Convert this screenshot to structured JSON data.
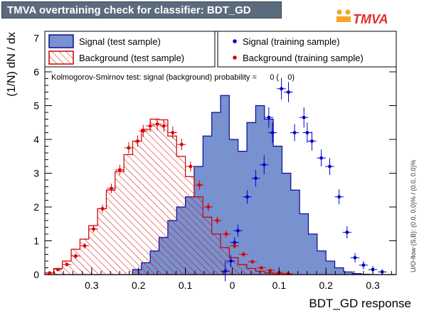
{
  "header": {
    "title": "TMVA overtraining check for classifier: BDT_GD",
    "logo_text": "TMVA"
  },
  "colors": {
    "title_bg": "#5b6b7e",
    "signal_fill": "#7891cf",
    "signal_line": "#0a0a9a",
    "signal_points": "#0000cc",
    "background_line": "#cc0000",
    "background_points": "#dd0000",
    "logo_orange": "#f5a623",
    "logo_red": "#e0302a"
  },
  "chart_data": {
    "type": "histogram",
    "xlabel": "BDT_GD response",
    "ylabel": "(1/N) dN / dx",
    "xlim": [
      -0.4,
      0.35
    ],
    "ylim": [
      0,
      7.2
    ],
    "x_ticks": [
      -0.3,
      -0.2,
      -0.1,
      0,
      0.1,
      0.2,
      0.3
    ],
    "x_tick_labels": [
      "0.3",
      "0.2",
      "0.1",
      "0",
      "0.1",
      "0.2",
      "0.3"
    ],
    "y_ticks": [
      0,
      1,
      2,
      3,
      4,
      5,
      6,
      7
    ],
    "bin_edges_start": -0.4,
    "bin_width": 0.01875,
    "signal_test": [
      0,
      0,
      0,
      0,
      0,
      0,
      0,
      0,
      0,
      0,
      0.15,
      0.35,
      0.7,
      1.1,
      1.6,
      2.0,
      2.3,
      3.2,
      4.1,
      4.8,
      5.3,
      4.0,
      3.65,
      4.5,
      5.0,
      4.6,
      3.8,
      3.0,
      2.5,
      1.8,
      1.2,
      0.7,
      0.4,
      0.2,
      0.08,
      0.03,
      0.01,
      0,
      0,
      0
    ],
    "background_test": [
      0.05,
      0.18,
      0.4,
      0.75,
      1.05,
      1.45,
      1.95,
      2.5,
      3.05,
      3.55,
      3.95,
      4.3,
      4.6,
      4.58,
      4.1,
      3.5,
      2.9,
      2.3,
      1.7,
      1.2,
      0.8,
      0.5,
      0.3,
      0.18,
      0.1,
      0.05,
      0.02,
      0.01,
      0,
      0,
      0,
      0,
      0,
      0,
      0,
      0,
      0,
      0,
      0,
      0
    ],
    "signal_train": [
      {
        "x": -0.015,
        "y": 0.1,
        "err": 0.3
      },
      {
        "x": -0.003,
        "y": 0.4,
        "err": 0.18
      },
      {
        "x": 0.005,
        "y": 0.95,
        "err": 0.15
      },
      {
        "x": 0.012,
        "y": 1.3,
        "err": 0.18
      },
      {
        "x": 0.032,
        "y": 2.3,
        "err": 0.2
      },
      {
        "x": 0.05,
        "y": 2.85,
        "err": 0.25
      },
      {
        "x": 0.068,
        "y": 3.25,
        "err": 0.28
      },
      {
        "x": 0.078,
        "y": 4.65,
        "err": 0.3
      },
      {
        "x": 0.086,
        "y": 4.2,
        "err": 0.3
      },
      {
        "x": 0.105,
        "y": 5.5,
        "err": 0.32
      },
      {
        "x": 0.12,
        "y": 5.4,
        "err": 0.3
      },
      {
        "x": 0.133,
        "y": 4.2,
        "err": 0.25
      },
      {
        "x": 0.153,
        "y": 4.65,
        "err": 0.3
      },
      {
        "x": 0.16,
        "y": 4.2,
        "err": 0.3
      },
      {
        "x": 0.17,
        "y": 3.95,
        "err": 0.28
      },
      {
        "x": 0.19,
        "y": 3.45,
        "err": 0.25
      },
      {
        "x": 0.208,
        "y": 3.2,
        "err": 0.25
      },
      {
        "x": 0.228,
        "y": 2.3,
        "err": 0.22
      },
      {
        "x": 0.245,
        "y": 1.25,
        "err": 0.18
      },
      {
        "x": 0.262,
        "y": 0.5,
        "err": 0.14
      },
      {
        "x": 0.28,
        "y": 0.28,
        "err": 0.12
      },
      {
        "x": 0.3,
        "y": 0.15,
        "err": 0.1
      },
      {
        "x": 0.32,
        "y": 0.08,
        "err": 0.08
      }
    ],
    "background_train": [
      {
        "x": -0.39,
        "y": 0.05,
        "err": 0.04
      },
      {
        "x": -0.372,
        "y": 0.15,
        "err": 0.05
      },
      {
        "x": -0.353,
        "y": 0.3,
        "err": 0.06
      },
      {
        "x": -0.334,
        "y": 0.55,
        "err": 0.07
      },
      {
        "x": -0.315,
        "y": 0.85,
        "err": 0.08
      },
      {
        "x": -0.296,
        "y": 1.35,
        "err": 0.1
      },
      {
        "x": -0.277,
        "y": 1.95,
        "err": 0.12
      },
      {
        "x": -0.258,
        "y": 2.55,
        "err": 0.14
      },
      {
        "x": -0.24,
        "y": 3.1,
        "err": 0.15
      },
      {
        "x": -0.221,
        "y": 3.75,
        "err": 0.17
      },
      {
        "x": -0.202,
        "y": 3.95,
        "err": 0.17
      },
      {
        "x": -0.19,
        "y": 4.25,
        "err": 0.18
      },
      {
        "x": -0.175,
        "y": 4.4,
        "err": 0.18
      },
      {
        "x": -0.16,
        "y": 4.45,
        "err": 0.18
      },
      {
        "x": -0.146,
        "y": 4.4,
        "err": 0.18
      },
      {
        "x": -0.127,
        "y": 4.2,
        "err": 0.18
      },
      {
        "x": -0.108,
        "y": 3.85,
        "err": 0.17
      },
      {
        "x": -0.089,
        "y": 3.2,
        "err": 0.15
      },
      {
        "x": -0.07,
        "y": 2.65,
        "err": 0.14
      },
      {
        "x": -0.051,
        "y": 2.0,
        "err": 0.12
      },
      {
        "x": -0.032,
        "y": 1.6,
        "err": 0.11
      },
      {
        "x": -0.013,
        "y": 1.2,
        "err": 0.1
      },
      {
        "x": 0.005,
        "y": 0.85,
        "err": 0.08
      },
      {
        "x": 0.024,
        "y": 0.6,
        "err": 0.07
      },
      {
        "x": 0.043,
        "y": 0.38,
        "err": 0.06
      },
      {
        "x": 0.062,
        "y": 0.2,
        "err": 0.05
      },
      {
        "x": 0.081,
        "y": 0.12,
        "err": 0.04
      },
      {
        "x": 0.1,
        "y": 0.06,
        "err": 0.03
      },
      {
        "x": 0.119,
        "y": 0.03,
        "err": 0.02
      }
    ],
    "legend": [
      {
        "label": "Signal (test sample)",
        "kind": "signal-test"
      },
      {
        "label": "Signal (training sample)",
        "kind": "signal-train"
      },
      {
        "label": "Background (test sample)",
        "kind": "background-test"
      },
      {
        "label": "Background (training sample)",
        "kind": "background-train"
      }
    ],
    "ks_text": "Kolmogorov-Smirnov test: signal (background) probability =      0 (    0)",
    "side_note": "U/O-flow (S,B): (0.0, 0.0)% / (0.0, 0.0)%"
  }
}
